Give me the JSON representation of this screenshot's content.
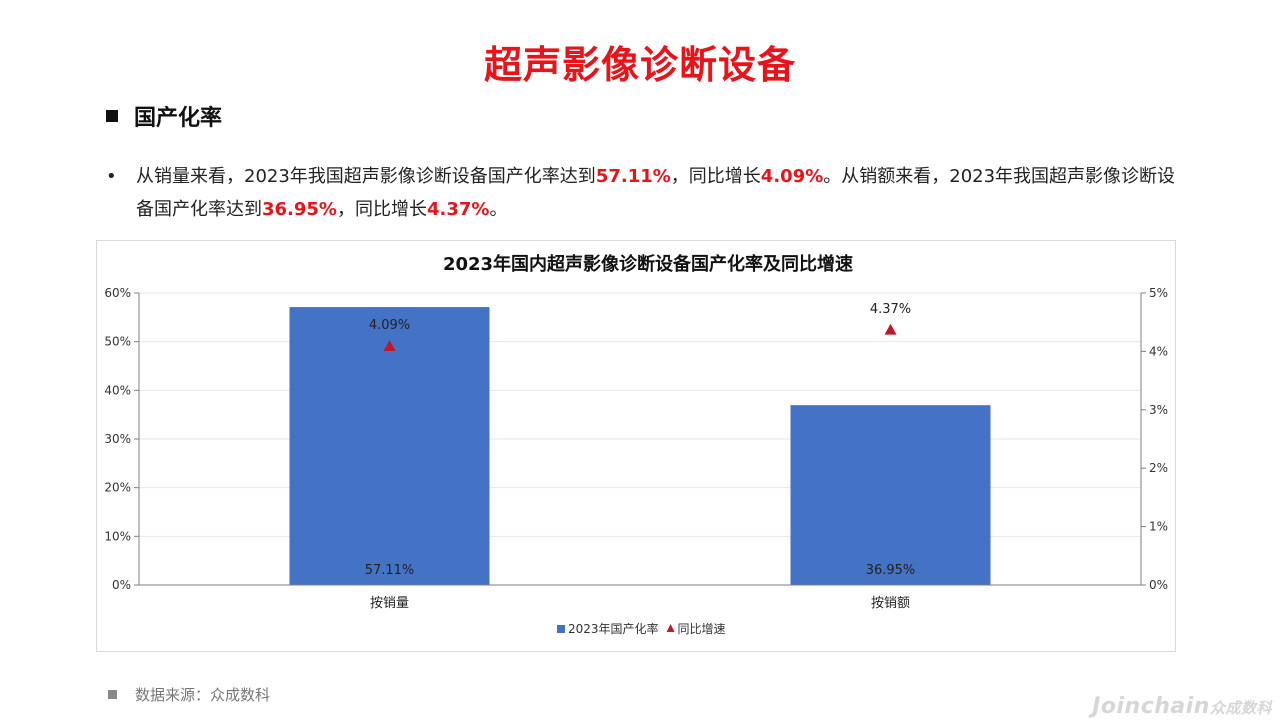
{
  "page": {
    "title": "超声影像诊断设备",
    "section_title": "国产化率",
    "bullet_mark": "•",
    "summary": {
      "p1": "从销量来看，2023年我国超声影像诊断设备国产化率达到",
      "v1": "57.11%",
      "p2": "，同比增长",
      "v2": "4.09%",
      "p3": "。从销额来看，2023年我国超声影像诊断设备国产化率达到",
      "v3": "36.95%",
      "p4": "，同比增长",
      "v4": "4.37%",
      "p5": "。"
    },
    "source": "数据来源：众成数科",
    "watermark": {
      "latin": "Joinchain",
      "cn": "众成数科"
    }
  },
  "colors": {
    "title": "#e8141a",
    "highlight": "#e8141a",
    "bar": "#4472c4",
    "marker": "#c0172b",
    "axis": "#7f7f7f",
    "grid": "#e6e6e6"
  },
  "chart_data": {
    "type": "bar",
    "title": "2023年国内超声影像诊断设备国产化率及同比增速",
    "categories": [
      "按销量",
      "按销额"
    ],
    "series": [
      {
        "name": "2023年国产化率",
        "type": "bar",
        "axis": "left",
        "values": [
          57.11,
          36.95
        ],
        "labels": [
          "57.11%",
          "36.95%"
        ]
      },
      {
        "name": "同比增速",
        "type": "scatter",
        "marker": "triangle",
        "axis": "right",
        "values": [
          4.09,
          4.37
        ],
        "labels": [
          "4.09%",
          "4.37%"
        ]
      }
    ],
    "y_left": {
      "min": 0,
      "max": 60,
      "step": 10,
      "tick_labels": [
        "0%",
        "10%",
        "20%",
        "30%",
        "40%",
        "50%",
        "60%"
      ]
    },
    "y_right": {
      "min": 0,
      "max": 5,
      "step": 1,
      "tick_labels": [
        "0%",
        "1%",
        "2%",
        "3%",
        "4%",
        "5%"
      ]
    },
    "grid": true,
    "legend": "bottom"
  }
}
